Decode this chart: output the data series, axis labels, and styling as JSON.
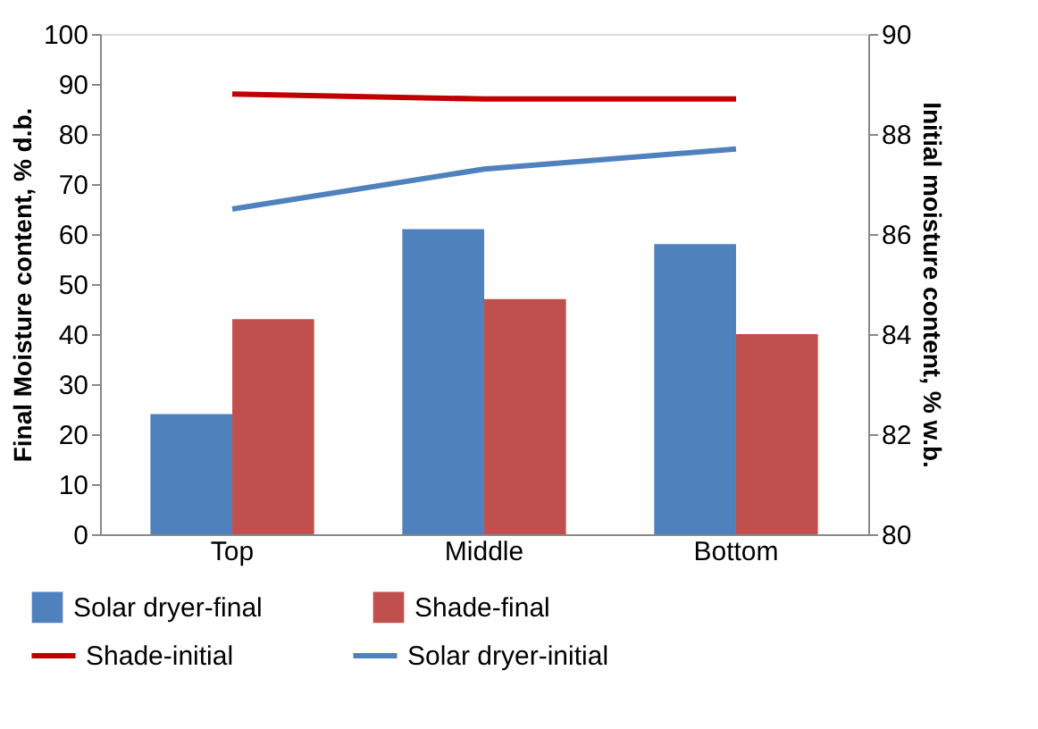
{
  "chart_data": {
    "type": "bar",
    "categories": [
      "Top",
      "Middle",
      "Bottom"
    ],
    "ylabel": "Final Moisture content, % d.b.",
    "y2label": "Initial moisture content, % w.b.",
    "ylim": [
      0,
      100
    ],
    "yticks": [
      0,
      10,
      20,
      30,
      40,
      50,
      60,
      70,
      80,
      90,
      100
    ],
    "y2lim": [
      80,
      90
    ],
    "y2ticks": [
      80,
      82,
      84,
      86,
      88,
      90
    ],
    "series": [
      {
        "name": "Solar dryer-final",
        "color": "#4f81bd",
        "values": [
          24,
          61,
          58
        ]
      },
      {
        "name": "Shade-final",
        "color": "#c0504d",
        "values": [
          43,
          47,
          40
        ]
      },
      {
        "name": "Shade-initial",
        "color": "#c00000",
        "type": "line",
        "axis": "y2",
        "values": [
          88.8,
          88.7,
          88.7
        ]
      },
      {
        "name": "Solar dryer-initial",
        "color": "#4f81bd",
        "type": "line",
        "axis": "y2",
        "values": [
          86.5,
          87.3,
          87.7
        ]
      }
    ],
    "legend": "bottom",
    "grid": false,
    "marker": "none",
    "line_style": "solid"
  }
}
